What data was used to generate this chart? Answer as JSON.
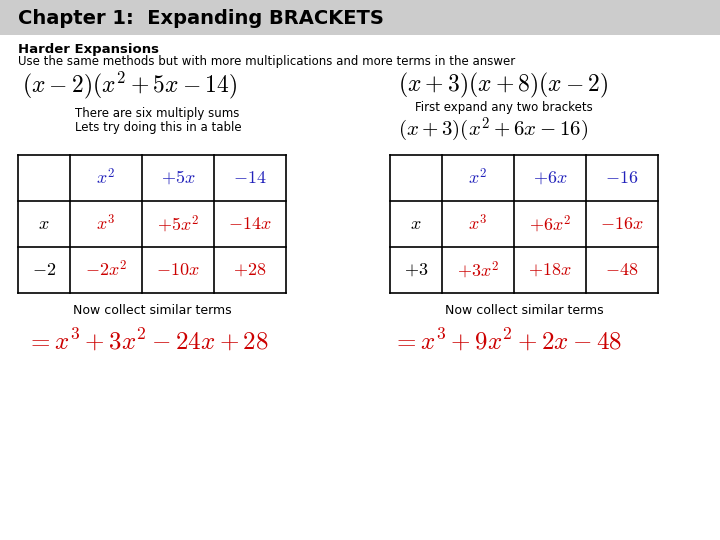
{
  "title": "Chapter 1:  Expanding BRACKETS",
  "subtitle_bold": "Harder Expansions",
  "subtitle_normal": "Use the same methods but with more multiplications and more terms in the answer",
  "bg_color": "#ffffff",
  "color_title_bg": "#cccccc",
  "color_blue": "#2222bb",
  "color_red": "#cc0000",
  "color_black": "#000000",
  "left_note1": "There are six multiply sums",
  "left_note2": "Lets try doing this in a table",
  "right_note": "First expand any two brackets",
  "left_collect": "Now collect similar terms",
  "right_collect": "Now collect similar terms"
}
